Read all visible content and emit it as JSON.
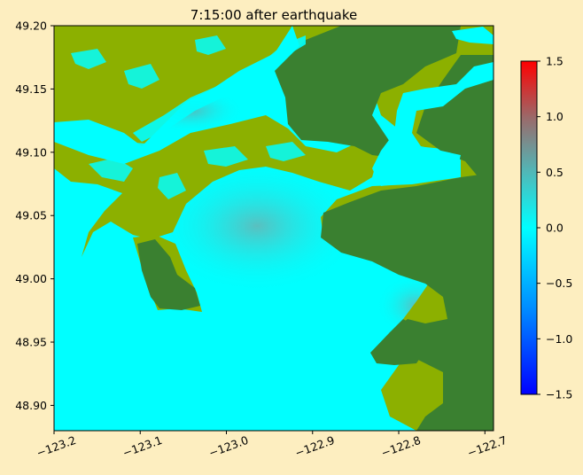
{
  "chart_data": {
    "type": "heatmap",
    "title": "7:15:00 after earthquake",
    "xlabel": "",
    "ylabel": "",
    "xlim": [
      -123.2,
      -122.69
    ],
    "ylim": [
      48.88,
      49.2
    ],
    "x_ticks": [
      "−123.2",
      "−123.1",
      "−123.0",
      "−122.9",
      "−122.8",
      "−122.7"
    ],
    "x_tick_values": [
      -123.2,
      -123.1,
      -123.0,
      -122.9,
      -122.8,
      -122.7
    ],
    "y_ticks": [
      "49.20",
      "49.15",
      "49.10",
      "49.05",
      "49.00",
      "48.95",
      "48.90"
    ],
    "y_tick_values": [
      49.2,
      49.15,
      49.1,
      49.05,
      49.0,
      48.95,
      48.9
    ],
    "colorbar": {
      "range": [
        -1.5,
        1.5
      ],
      "ticks": [
        "1.5",
        "1.0",
        "0.5",
        "0.0",
        "−0.5",
        "−1.0",
        "−1.5"
      ],
      "tick_values": [
        1.5,
        1.0,
        0.5,
        0.0,
        -0.5,
        -1.0,
        -1.5
      ],
      "colors": [
        "#0000ff",
        "#00aaff",
        "#00ffff",
        "#6aa8a8",
        "#b05050",
        "#ff0000"
      ]
    },
    "colors": {
      "water": "#00ffff",
      "water_elevated": "#55bbbb",
      "land_low": "#8cb000",
      "land_high": "#3a8030",
      "background": "#fdeec0"
    }
  }
}
